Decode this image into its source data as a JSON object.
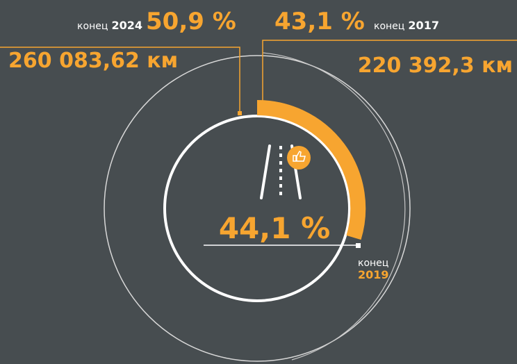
{
  "left": {
    "label": "конец",
    "year": "2024",
    "percent": "50,9 %",
    "distance": "260 083,62 км"
  },
  "right": {
    "percent": "43,1 %",
    "label": "конец",
    "year": "2017",
    "distance": "220 392,3 км"
  },
  "center": {
    "percent": "44,1 %",
    "label": "конец",
    "year": "2019"
  }
}
